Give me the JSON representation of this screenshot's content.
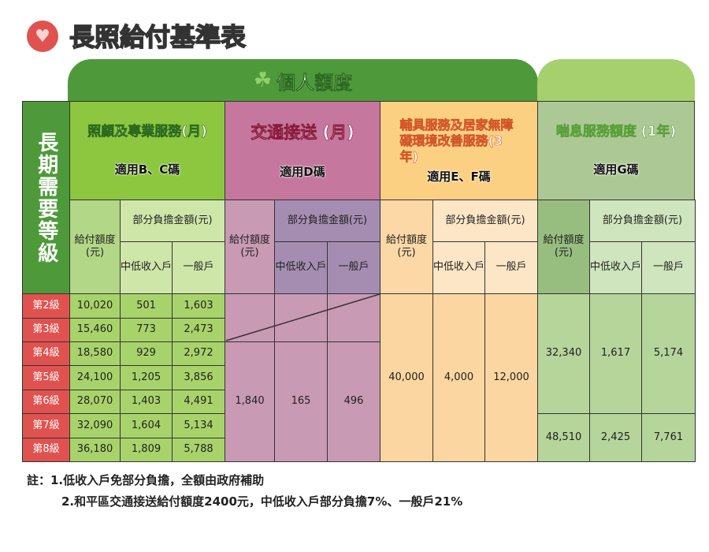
{
  "title": "長照給付基準表",
  "banner": "個人額度",
  "level_header": "長期需要等級",
  "levels": [
    "第2級",
    "第3級",
    "第4級",
    "第5級",
    "第6級",
    "第7級",
    "第8級"
  ],
  "sub": {
    "pay": "給付額度(元)",
    "share": "部分負擔金額(元)",
    "low": "中低收入戶",
    "general": "一般戶"
  },
  "categories": [
    {
      "title": "照顧及專業服務(月)",
      "code": "適用B、C碼"
    },
    {
      "title": "交通接送 (月)",
      "code": "適用D碼"
    },
    {
      "title": "輔具服務及居家無障礙環境改善服務(3年)",
      "code": "適用E、F碼"
    },
    {
      "title": "喘息服務額度 (1年)",
      "code": "適用G碼"
    }
  ],
  "bc_rows": [
    [
      "10,020",
      "501",
      "1,603"
    ],
    [
      "15,460",
      "773",
      "2,473"
    ],
    [
      "18,580",
      "929",
      "2,972"
    ],
    [
      "24,100",
      "1,205",
      "3,856"
    ],
    [
      "28,070",
      "1,403",
      "4,491"
    ],
    [
      "32,090",
      "1,604",
      "5,134"
    ],
    [
      "36,180",
      "1,809",
      "5,788"
    ]
  ],
  "d_merged": [
    "1,840",
    "165",
    "496"
  ],
  "ef_merged": [
    "40,000",
    "4,000",
    "12,000"
  ],
  "g_group1": [
    "32,340",
    "1,617",
    "5,174"
  ],
  "g_group2": [
    "48,510",
    "2,425",
    "7,761"
  ],
  "notes": [
    "註：1.低收入戶免部分負擔，全額由政府補助",
    "2.和平區交通接送給付額度2400元，中低收入戶部分負擔7%、一般戶21%"
  ],
  "colors": {
    "accent_red": "#e0524f",
    "dark_green": "#4e9a3a"
  }
}
